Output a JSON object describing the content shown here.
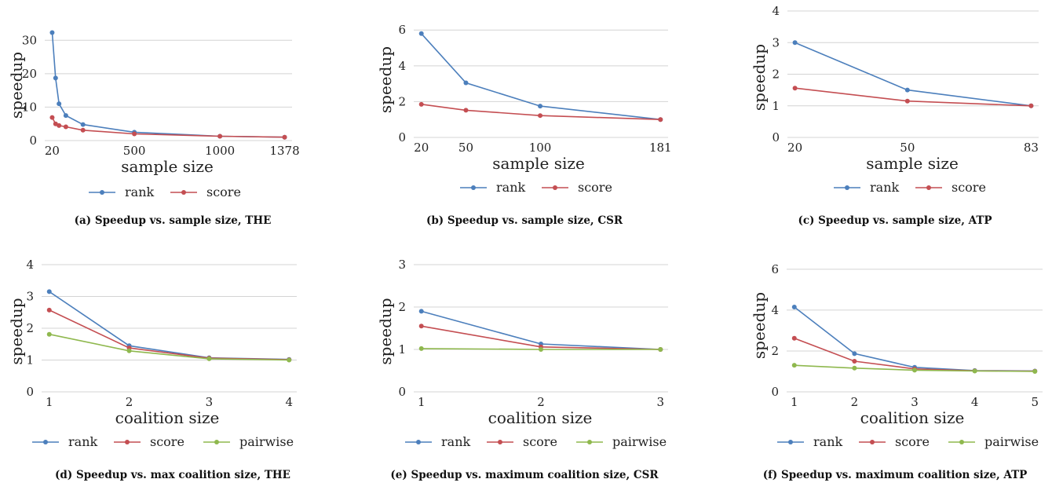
{
  "colors": {
    "rank": "#4c7fbc",
    "score": "#c44e52",
    "pairwise": "#8fb84e",
    "grid": "#d4d4d4"
  },
  "chart_data": [
    {
      "type": "line",
      "caption": "(a) Speedup vs. sample size, THE",
      "xlabel": "sample size",
      "ylabel": "speedup",
      "xlim": [
        20,
        1378
      ],
      "ylim": [
        0,
        35
      ],
      "xticks": [
        20,
        500,
        1000,
        1378
      ],
      "yticks": [
        0,
        10,
        20,
        30
      ],
      "series": [
        {
          "name": "rank",
          "x": [
            20,
            40,
            60,
            100,
            200,
            500,
            1000,
            1378
          ],
          "y": [
            32.3,
            18.7,
            11.0,
            7.5,
            4.8,
            2.5,
            1.3,
            1.0
          ]
        },
        {
          "name": "score",
          "x": [
            20,
            40,
            60,
            100,
            200,
            500,
            1000,
            1378
          ],
          "y": [
            6.9,
            5.0,
            4.5,
            4.1,
            3.1,
            2.0,
            1.3,
            1.0
          ]
        }
      ]
    },
    {
      "type": "line",
      "caption": "(b) Speedup vs. sample size, CSR",
      "xlabel": "sample size",
      "ylabel": "speedup",
      "xlim": [
        20,
        181
      ],
      "ylim": [
        0,
        6.8
      ],
      "xticks": [
        20,
        50,
        100,
        181
      ],
      "yticks": [
        0,
        2,
        4,
        6
      ],
      "series": [
        {
          "name": "rank",
          "x": [
            20,
            50,
            100,
            181
          ],
          "y": [
            5.8,
            3.05,
            1.75,
            1.0
          ]
        },
        {
          "name": "score",
          "x": [
            20,
            50,
            100,
            181
          ],
          "y": [
            1.85,
            1.52,
            1.22,
            1.0
          ]
        }
      ]
    },
    {
      "type": "line",
      "caption": "(c) Speedup vs. sample size, ATP",
      "xlabel": "sample size",
      "ylabel": "speedup",
      "xlim": [
        20,
        83
      ],
      "ylim": [
        0,
        4
      ],
      "xticks": [
        20,
        50,
        83
      ],
      "yticks": [
        0,
        1,
        2,
        3,
        4
      ],
      "series": [
        {
          "name": "rank",
          "x": [
            20,
            50,
            83
          ],
          "y": [
            3.0,
            1.5,
            1.0
          ]
        },
        {
          "name": "score",
          "x": [
            20,
            50,
            83
          ],
          "y": [
            1.56,
            1.15,
            1.0
          ]
        }
      ]
    },
    {
      "type": "line",
      "caption": "(d) Speedup vs. max coalition size, THE",
      "xlabel": "coalition size",
      "ylabel": "speedup",
      "xlim": [
        1,
        4
      ],
      "ylim": [
        0,
        4
      ],
      "xticks": [
        1,
        2,
        3,
        4
      ],
      "yticks": [
        0,
        1,
        2,
        3,
        4
      ],
      "series": [
        {
          "name": "rank",
          "x": [
            1,
            2,
            3,
            4
          ],
          "y": [
            3.15,
            1.45,
            1.07,
            1.02
          ]
        },
        {
          "name": "score",
          "x": [
            1,
            2,
            3,
            4
          ],
          "y": [
            2.57,
            1.38,
            1.06,
            1.01
          ]
        },
        {
          "name": "pairwise",
          "x": [
            1,
            2,
            3,
            4
          ],
          "y": [
            1.81,
            1.29,
            1.04,
            1.0
          ]
        }
      ]
    },
    {
      "type": "line",
      "caption": "(e) Speedup vs. maximum coalition size, CSR",
      "xlabel": "coalition size",
      "ylabel": "speedup",
      "xlim": [
        1,
        3
      ],
      "ylim": [
        0,
        3
      ],
      "xticks": [
        1,
        2,
        3
      ],
      "yticks": [
        0,
        1,
        2,
        3
      ],
      "series": [
        {
          "name": "rank",
          "x": [
            1,
            2,
            3
          ],
          "y": [
            1.9,
            1.13,
            1.0
          ]
        },
        {
          "name": "score",
          "x": [
            1,
            2,
            3
          ],
          "y": [
            1.55,
            1.06,
            1.0
          ]
        },
        {
          "name": "pairwise",
          "x": [
            1,
            2,
            3
          ],
          "y": [
            1.02,
            1.0,
            1.0
          ]
        }
      ]
    },
    {
      "type": "line",
      "caption": "(f) Speedup vs. maximum coalition size, ATP",
      "xlabel": "coalition size",
      "ylabel": "speedup",
      "xlim": [
        1,
        5
      ],
      "ylim": [
        0,
        6.8
      ],
      "xticks": [
        1,
        2,
        3,
        4,
        5
      ],
      "yticks": [
        0,
        2,
        4,
        6
      ],
      "series": [
        {
          "name": "rank",
          "x": [
            1,
            2,
            3,
            4,
            5
          ],
          "y": [
            4.15,
            1.87,
            1.2,
            1.04,
            1.02
          ]
        },
        {
          "name": "score",
          "x": [
            1,
            2,
            3,
            4,
            5
          ],
          "y": [
            2.62,
            1.5,
            1.12,
            1.03,
            1.01
          ]
        },
        {
          "name": "pairwise",
          "x": [
            1,
            2,
            3,
            4,
            5
          ],
          "y": [
            1.3,
            1.16,
            1.06,
            1.02,
            1.0
          ]
        }
      ]
    }
  ]
}
